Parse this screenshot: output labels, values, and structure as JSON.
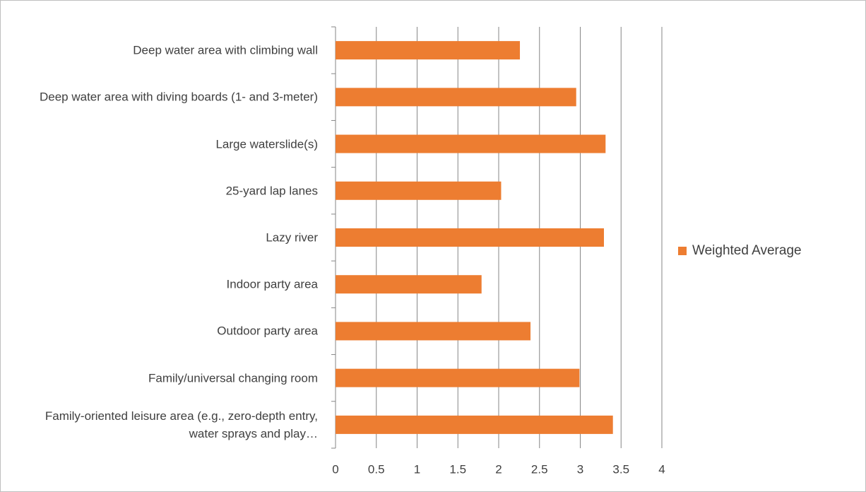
{
  "chart_data": {
    "type": "barh",
    "categories": [
      "Deep water area with climbing wall",
      "Deep water area with diving boards (1- and 3-meter)",
      "Large waterslide(s)",
      "25-yard lap lanes",
      "Lazy river",
      "Indoor party area",
      "Outdoor party area",
      "Family/universal changing room",
      "Family-oriented leisure area (e.g., zero-depth entry, water sprays and play…"
    ],
    "series": [
      {
        "name": "Weighted Average",
        "color": "#ed7d31",
        "values": [
          2.26,
          2.95,
          3.31,
          2.03,
          3.29,
          1.79,
          2.39,
          2.99,
          3.4
        ]
      }
    ],
    "xlim": [
      0,
      4
    ],
    "xticks": [
      0,
      0.5,
      1,
      1.5,
      2,
      2.5,
      3,
      3.5,
      4
    ],
    "grid": true,
    "legend": "right"
  }
}
